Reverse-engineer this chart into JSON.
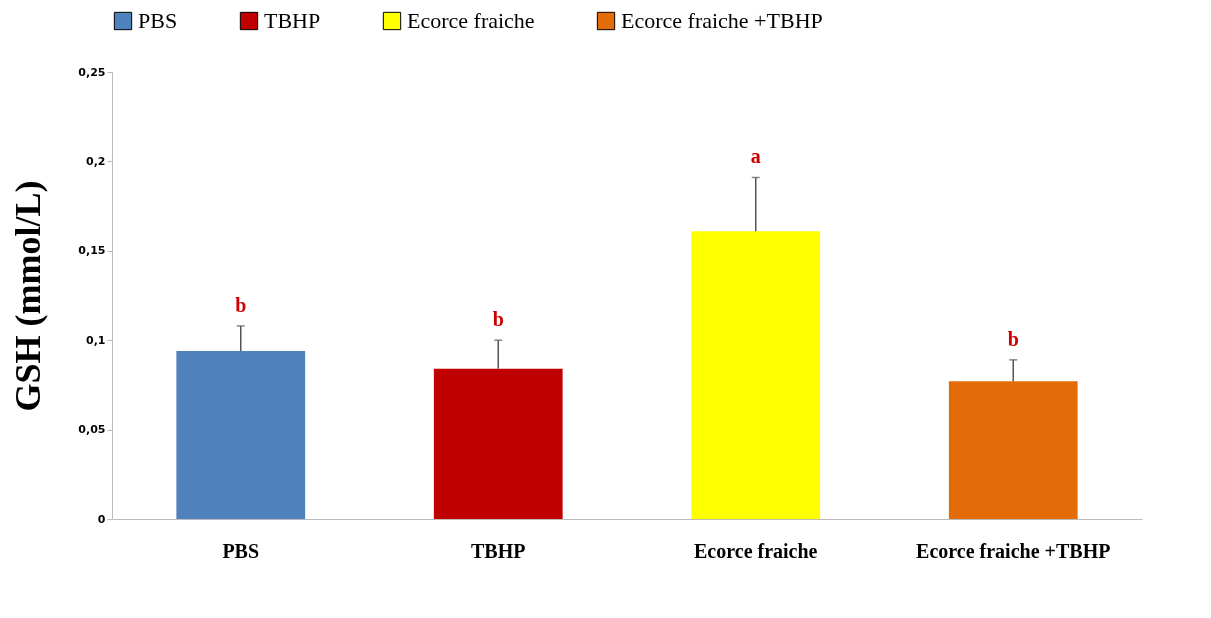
{
  "chart_data": {
    "type": "bar",
    "ylabel": "GSH (mmol/L)",
    "categories": [
      "PBS",
      "TBHP",
      "Ecorce fraiche",
      "Ecorce fraiche +TBHP"
    ],
    "series": [
      {
        "name": "PBS",
        "color": "#4f81bd",
        "values": [
          0.094,
          null,
          null,
          null
        ],
        "errors": [
          [
            0.094,
            0.108
          ],
          null,
          null,
          null
        ]
      },
      {
        "name": "TBHP",
        "color": "#c00000",
        "values": [
          null,
          0.084,
          null,
          null
        ],
        "errors": [
          null,
          [
            0.084,
            0.1
          ],
          null,
          null
        ]
      },
      {
        "name": "Ecorce fraiche",
        "color": "#ffff00",
        "values": [
          null,
          null,
          0.161,
          null
        ],
        "errors": [
          null,
          null,
          [
            0.161,
            0.191
          ],
          null
        ]
      },
      {
        "name": "Ecorce fraiche +TBHP",
        "color": "#e36c09",
        "values": [
          null,
          null,
          null,
          0.077
        ],
        "errors": [
          null,
          null,
          null,
          [
            0.077,
            0.089
          ]
        ]
      }
    ],
    "ylim": [
      0,
      0.25
    ],
    "yticks": [
      {
        "value": 0,
        "label": "0"
      },
      {
        "value": 0.05,
        "label": "0,05"
      },
      {
        "value": 0.1,
        "label": "0,1"
      },
      {
        "value": 0.15,
        "label": "0,15"
      },
      {
        "value": 0.2,
        "label": "0,2"
      },
      {
        "value": 0.25,
        "label": "0,25"
      }
    ],
    "annotations": [
      {
        "text": "b",
        "x": "PBS",
        "y": 0.108
      },
      {
        "text": "b",
        "x": "TBHP",
        "y": 0.1
      },
      {
        "text": "a",
        "x": "Ecorce fraiche",
        "y": 0.191
      },
      {
        "text": "b",
        "x": "Ecorce fraiche +TBHP",
        "y": 0.089
      }
    ],
    "legend": "top",
    "grid": false
  }
}
